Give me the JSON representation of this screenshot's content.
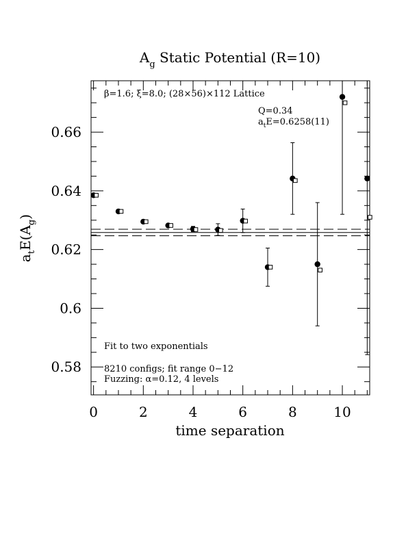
{
  "chart_data": {
    "type": "scatter",
    "title": "A_g Static Potential (R=10)",
    "title_parts": {
      "base": "A",
      "sub": "g",
      "rest": " Static Potential (R=10)"
    },
    "xlabel": "time separation",
    "ylabel_parts": {
      "a": "a",
      "t": "t",
      "e": "E(A",
      "g": "g",
      "close": ")"
    },
    "xlim": [
      -0.1,
      11.1
    ],
    "ylim": [
      0.5705,
      0.6775
    ],
    "xticks": [
      0,
      2,
      4,
      6,
      8,
      10
    ],
    "xtick_labels": [
      "0",
      "2",
      "4",
      "6",
      "8",
      "10"
    ],
    "yticks": [
      0.58,
      0.6,
      0.62,
      0.64,
      0.66
    ],
    "ytick_labels": [
      "0.58",
      "0.6",
      "0.62",
      "0.64",
      "0.66"
    ],
    "fit": {
      "value": 0.6258,
      "error": 0.0011,
      "x_range": [
        -0.1,
        11.1
      ]
    },
    "series": [
      {
        "name": "fit data",
        "marker": "filled-circle",
        "points": [
          {
            "x": 0,
            "y": 0.6385,
            "err": 0.0003
          },
          {
            "x": 1,
            "y": 0.633,
            "err": 0.0004
          },
          {
            "x": 2,
            "y": 0.6295,
            "err": 0.0005
          },
          {
            "x": 3,
            "y": 0.6282,
            "err": 0.0006
          },
          {
            "x": 4,
            "y": 0.627,
            "err": 0.0009
          },
          {
            "x": 5,
            "y": 0.6268,
            "err": 0.002
          },
          {
            "x": 6,
            "y": 0.6298,
            "err": 0.004
          },
          {
            "x": 7,
            "y": 0.614,
            "err": 0.0065
          },
          {
            "x": 8,
            "y": 0.6442,
            "err": 0.0122
          },
          {
            "x": 9,
            "y": 0.615,
            "err": 0.021
          },
          {
            "x": 10,
            "y": 0.672,
            "err": 0.04
          },
          {
            "x": 11,
            "y": 0.6442,
            "err": 0.06
          }
        ]
      },
      {
        "name": "fit curve",
        "marker": "open-square",
        "points": [
          {
            "x": 0,
            "y": 0.6385
          },
          {
            "x": 1,
            "y": 0.633
          },
          {
            "x": 2,
            "y": 0.6295
          },
          {
            "x": 3,
            "y": 0.6282
          },
          {
            "x": 4,
            "y": 0.6268
          },
          {
            "x": 5,
            "y": 0.6265
          },
          {
            "x": 6,
            "y": 0.6297
          },
          {
            "x": 7,
            "y": 0.614
          },
          {
            "x": 8,
            "y": 0.6435
          },
          {
            "x": 9,
            "y": 0.613
          },
          {
            "x": 10,
            "y": 0.67
          },
          {
            "x": 11,
            "y": 0.631
          }
        ]
      }
    ],
    "annotations": {
      "lattice": "β=1.6; ξ=8.0; (28×56)×112 Lattice",
      "q": "Q=0.34",
      "energy_a": "a",
      "energy_t": "t",
      "energy_rest": "E=0.6258(11)",
      "fit_type": "Fit to two exponentials",
      "configs": "8210 configs; fit range 0−12",
      "fuzzing": "Fuzzing: α=0.12, 4 levels"
    }
  }
}
